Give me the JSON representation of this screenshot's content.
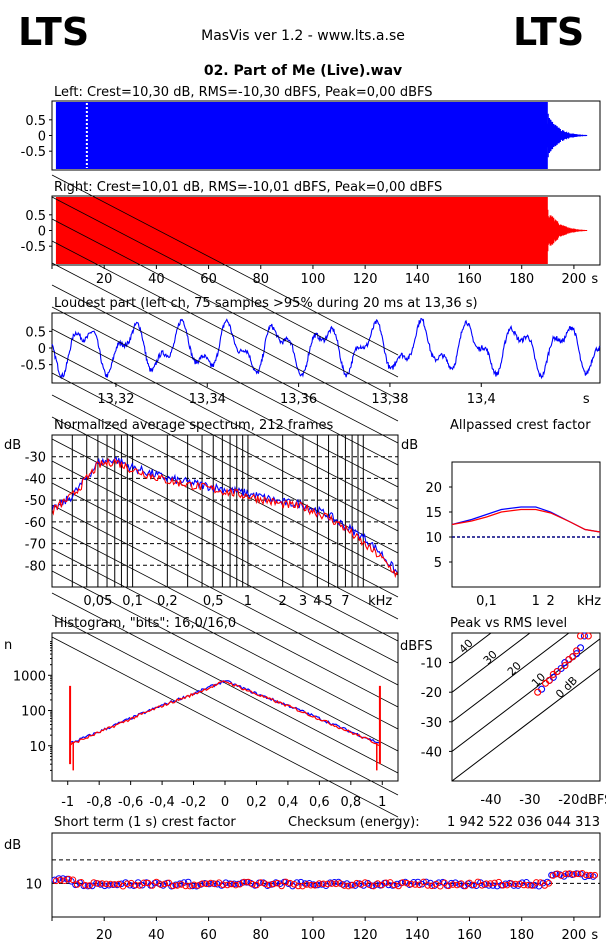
{
  "header": {
    "logo_left": "LTS",
    "logo_right": "LTS",
    "app_title": "MasVis ver 1.2 - www.lts.a.se",
    "file_name": "02. Part of Me (Live).wav"
  },
  "colors": {
    "left": "#0000ff",
    "right": "#ff0000",
    "axis": "#000000"
  },
  "chart_data": [
    {
      "id": "left-waveform",
      "type": "area",
      "title": "Left: Crest=10,30 dB, RMS=-10,30 dBFS, Peak=0,00 dBFS",
      "series": [
        {
          "name": "",
          "color": "#0000ff"
        }
      ],
      "yticks": [
        "0.5",
        "0",
        "-0.5"
      ],
      "xlim": [
        0,
        210
      ],
      "ylim": [
        -1,
        1
      ],
      "clip_end_s": 190,
      "fade_end_s": 205
    },
    {
      "id": "right-waveform",
      "type": "area",
      "title": "Right: Crest=10,01 dB, RMS=-10,01 dBFS, Peak=0,00 dBFS",
      "series": [
        {
          "name": "",
          "color": "#ff0000"
        }
      ],
      "yticks": [
        "0.5",
        "0",
        "-0.5"
      ],
      "xticks": [
        "20",
        "40",
        "60",
        "80",
        "100",
        "120",
        "140",
        "160",
        "180",
        "200",
        "s"
      ],
      "xlim": [
        0,
        210
      ],
      "ylim": [
        -1,
        1
      ]
    },
    {
      "id": "loudest-part",
      "type": "line",
      "title": "Loudest part (left  ch, 75 samples >95% during 20 ms at 13,36 s)",
      "yticks": [
        "0.5",
        "0",
        "-0.5"
      ],
      "xticks": [
        "13,32",
        "13,34",
        "13,36",
        "13,38",
        "13,4",
        "s"
      ],
      "xlim": [
        13.306,
        13.426
      ],
      "ylim": [
        -1,
        1
      ]
    },
    {
      "id": "avg-spectrum",
      "type": "line",
      "title": "Normalized average spectrum, 212 frames",
      "ylabel": "dB",
      "yticks": [
        "-30",
        "-40",
        "-50",
        "-60",
        "-70",
        "-80"
      ],
      "xticks": [
        "0,05",
        "0,1",
        "0,2",
        "0,5",
        "1",
        "2",
        "3",
        "4",
        "5",
        "7",
        "kHz"
      ],
      "xlim": [
        0.02,
        20
      ],
      "ylim": [
        -90,
        -20
      ],
      "series": [
        {
          "name": "",
          "color": "#0000ff",
          "x": [
            0.02,
            0.03,
            0.05,
            0.07,
            0.1,
            0.2,
            0.5,
            1,
            2,
            3,
            5,
            7,
            10,
            14,
            20
          ],
          "y": [
            -55,
            -48,
            -33,
            -31,
            -35,
            -40,
            -44,
            -47,
            -51,
            -52,
            -57,
            -62,
            -67,
            -74,
            -84
          ]
        },
        {
          "name": "",
          "color": "#ff0000",
          "x": [
            0.02,
            0.03,
            0.05,
            0.07,
            0.1,
            0.2,
            0.5,
            1,
            2,
            3,
            5,
            7,
            10,
            14,
            20
          ],
          "y": [
            -55,
            -48,
            -34,
            -32,
            -36,
            -41,
            -45,
            -48,
            -52,
            -53,
            -58,
            -63,
            -70,
            -76,
            -85
          ]
        }
      ]
    },
    {
      "id": "allpassed-crest",
      "type": "line",
      "title": "Allpassed crest factor",
      "ylabel": "dB",
      "yticks": [
        "20",
        "15",
        "10",
        "5"
      ],
      "xticks": [
        "0,1",
        "1",
        "2",
        "kHz"
      ],
      "xlim": [
        0.02,
        20
      ],
      "ylim": [
        0,
        25
      ],
      "reference_line": 10,
      "series": [
        {
          "name": "",
          "color": "#0000ff",
          "x": [
            0.02,
            0.05,
            0.1,
            0.2,
            0.5,
            1,
            2,
            5,
            10,
            20
          ],
          "y": [
            12.5,
            13.5,
            14.5,
            15.5,
            16,
            16,
            15,
            13,
            11.5,
            11
          ]
        },
        {
          "name": "",
          "color": "#ff0000",
          "x": [
            0.02,
            0.05,
            0.1,
            0.2,
            0.5,
            1,
            2,
            5,
            10,
            20
          ],
          "y": [
            12.5,
            13.2,
            14,
            15,
            15.5,
            15.5,
            14.8,
            13,
            11.5,
            11
          ]
        }
      ]
    },
    {
      "id": "histogram",
      "type": "line",
      "title": "Histogram, \"bits\": 16,0/16,0",
      "ylabel": "n",
      "yticks": [
        "1000",
        "100",
        "10"
      ],
      "xticks": [
        "-1",
        "-0,8",
        "-0,6",
        "-0,4",
        "-0,2",
        "0",
        "0,2",
        "0,4",
        "0,6",
        "0,8",
        "1"
      ],
      "xlim": [
        -1.1,
        1.1
      ],
      "ylim": [
        1,
        10000
      ],
      "yscale": "log",
      "series": [
        {
          "name": "",
          "color": "#0000ff",
          "x": [
            -0.98,
            -0.8,
            -0.6,
            -0.4,
            -0.2,
            0,
            0.2,
            0.4,
            0.6,
            0.8,
            0.98
          ],
          "y": [
            12,
            25,
            60,
            140,
            300,
            700,
            300,
            140,
            60,
            25,
            12
          ]
        },
        {
          "name": "",
          "color": "#ff0000",
          "x": [
            -0.98,
            -0.8,
            -0.6,
            -0.4,
            -0.2,
            0,
            0.2,
            0.4,
            0.6,
            0.8,
            0.98
          ],
          "y": [
            11,
            24,
            58,
            135,
            290,
            680,
            290,
            135,
            58,
            24,
            11
          ]
        }
      ],
      "clip_spikes": [
        -1,
        1
      ]
    },
    {
      "id": "peak-vs-rms",
      "type": "scatter",
      "title": "Peak vs RMS level",
      "ylabel": "dBFS",
      "xlabel": "dBFS",
      "yticks": [
        "-10",
        "-20",
        "-30",
        "-40"
      ],
      "xticks": [
        "-40",
        "-30",
        "-20",
        "dBFS"
      ],
      "diagonal_labels": [
        "40",
        "30",
        "20",
        "10",
        "0 dB"
      ],
      "xlim": [
        -50,
        -12
      ],
      "ylim": [
        -50,
        0
      ],
      "series": [
        {
          "name": "",
          "color": "#0000ff",
          "x": [
            -27,
            -25,
            -24,
            -23,
            -22,
            -21,
            -20,
            -19,
            -18,
            -17,
            -16
          ],
          "y": [
            -19,
            -16,
            -15,
            -13,
            -12,
            -10,
            -9,
            -8,
            -7,
            -5,
            -1
          ]
        },
        {
          "name": "",
          "color": "#ff0000",
          "x": [
            -28,
            -26,
            -25,
            -24,
            -23,
            -21,
            -20,
            -19,
            -18,
            -17,
            -15
          ],
          "y": [
            -20,
            -17,
            -16,
            -14,
            -13,
            -11,
            -9,
            -8,
            -6,
            -1,
            -1
          ]
        }
      ]
    },
    {
      "id": "short-term-crest",
      "type": "scatter",
      "title": "Short term (1 s) crest factor",
      "checksum_label": "Checksum (energy):",
      "checksum_value": "1 942 522 036 044 313",
      "ylabel": "dB",
      "yticks": [
        "10"
      ],
      "xticks": [
        "20",
        "40",
        "60",
        "80",
        "100",
        "120",
        "140",
        "160",
        "180",
        "200",
        "s"
      ],
      "xlim": [
        0,
        210
      ],
      "ylim": [
        0,
        25
      ],
      "reference_lines": [
        10,
        17
      ]
    }
  ]
}
